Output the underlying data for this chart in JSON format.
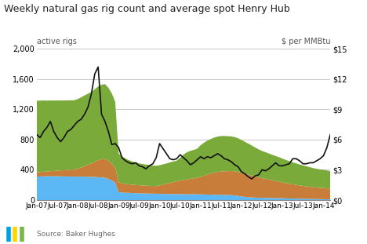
{
  "title": "Weekly natural gas rig count and average spot Henry Hub",
  "ylabel_left": "active rigs",
  "ylabel_right": "$ per MMBtu",
  "source": "Source: Baker Hughes",
  "colors": {
    "directional": "#5bb8f5",
    "horizontal": "#c87d3a",
    "vertical": "#7aab3a",
    "hh_spot": "#111111",
    "background": "#ffffff",
    "grid": "#c8c8c8"
  },
  "ylim_left": [
    0,
    2000
  ],
  "ylim_right": [
    0,
    15
  ],
  "yticks_left": [
    0,
    400,
    800,
    1200,
    1600,
    2000
  ],
  "yticks_right": [
    0,
    3,
    6,
    9,
    12,
    15
  ],
  "ytick_labels_right": [
    "$0",
    "$3",
    "$6",
    "$9",
    "$12",
    "$15"
  ],
  "xtick_labels": [
    "Jan-07",
    "Jul-07",
    "Jan-08",
    "Jul-08",
    "Jan-09",
    "Jul-09",
    "Jan-10",
    "Jul-10",
    "Jan-11",
    "Jul-11",
    "Jan-12",
    "Jul-12",
    "Jan-13",
    "Jul-13",
    "Jan-14"
  ],
  "directional": [
    310,
    312,
    315,
    315,
    316,
    315,
    315,
    314,
    313,
    312,
    311,
    310,
    310,
    310,
    310,
    308,
    306,
    305,
    303,
    300,
    295,
    280,
    260,
    230,
    105,
    100,
    97,
    95,
    93,
    91,
    90,
    88,
    87,
    86,
    85,
    84,
    83,
    82,
    81,
    80,
    80,
    79,
    79,
    78,
    78,
    77,
    77,
    77,
    75,
    74,
    73,
    72,
    71,
    70,
    69,
    68,
    67,
    66,
    62,
    55,
    48,
    42,
    38,
    35,
    33,
    31,
    30,
    29,
    28,
    27,
    26,
    25,
    24,
    22,
    21,
    20,
    19,
    18,
    17,
    16,
    15,
    14,
    13,
    12,
    11,
    10,
    9
  ],
  "horizontal": [
    55,
    58,
    60,
    63,
    66,
    70,
    74,
    78,
    82,
    86,
    90,
    95,
    105,
    120,
    138,
    158,
    178,
    200,
    225,
    240,
    248,
    240,
    220,
    195,
    130,
    122,
    117,
    113,
    110,
    108,
    106,
    104,
    103,
    102,
    101,
    101,
    110,
    122,
    135,
    148,
    158,
    168,
    178,
    188,
    196,
    204,
    210,
    218,
    230,
    248,
    265,
    280,
    292,
    302,
    308,
    313,
    316,
    318,
    318,
    316,
    310,
    304,
    298,
    290,
    280,
    270,
    260,
    252,
    244,
    236,
    228,
    220,
    210,
    202,
    195,
    188,
    182,
    176,
    170,
    165,
    160,
    155,
    152,
    150,
    148,
    145,
    142
  ],
  "vertical": [
    950,
    945,
    942,
    938,
    935,
    932,
    928,
    925,
    922,
    920,
    918,
    915,
    920,
    928,
    935,
    940,
    945,
    960,
    975,
    985,
    990,
    965,
    930,
    875,
    380,
    355,
    335,
    320,
    308,
    298,
    290,
    284,
    280,
    276,
    272,
    268,
    268,
    268,
    268,
    270,
    272,
    274,
    300,
    336,
    358,
    370,
    376,
    384,
    420,
    436,
    448,
    456,
    464,
    468,
    470,
    466,
    462,
    458,
    452,
    446,
    436,
    424,
    410,
    396,
    382,
    370,
    360,
    352,
    344,
    336,
    328,
    322,
    314,
    306,
    300,
    292,
    284,
    278,
    272,
    266,
    260,
    254,
    248,
    244,
    240,
    236,
    232
  ],
  "hh_spot": [
    6.5,
    6.2,
    6.8,
    7.2,
    7.8,
    6.8,
    6.2,
    5.8,
    6.2,
    6.8,
    7.0,
    7.4,
    7.8,
    8.0,
    8.5,
    9.2,
    10.5,
    12.5,
    13.2,
    8.5,
    7.8,
    6.8,
    5.5,
    5.6,
    5.2,
    4.2,
    3.9,
    3.7,
    3.6,
    3.7,
    3.4,
    3.3,
    3.1,
    3.4,
    3.6,
    4.2,
    5.6,
    5.1,
    4.6,
    4.1,
    4.0,
    4.1,
    4.5,
    4.2,
    3.9,
    3.5,
    3.7,
    4.0,
    4.3,
    4.1,
    4.3,
    4.2,
    4.4,
    4.6,
    4.4,
    4.1,
    4.0,
    3.8,
    3.5,
    3.3,
    2.8,
    2.6,
    2.3,
    2.1,
    2.4,
    2.5,
    3.0,
    2.9,
    3.1,
    3.4,
    3.7,
    3.4,
    3.4,
    3.5,
    3.6,
    4.1,
    4.1,
    3.9,
    3.6,
    3.6,
    3.7,
    3.7,
    3.9,
    4.1,
    4.4,
    5.2,
    6.5
  ]
}
